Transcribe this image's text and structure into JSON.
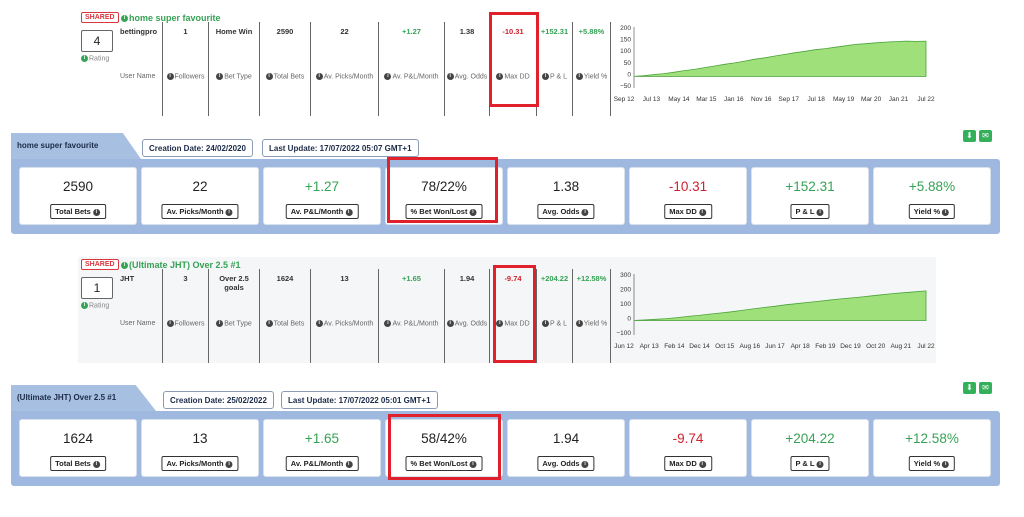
{
  "rows": [
    {
      "shared": "SHARED",
      "title": "home super favourite",
      "rank": "4",
      "rating_label": "Rating",
      "user": {
        "value": "bettingpro",
        "label": "User Name"
      },
      "followers": {
        "value": "1",
        "label": "Followers"
      },
      "bet_type": {
        "value": "Home Win",
        "label": "Bet Type"
      },
      "total_bets": {
        "value": "2590",
        "label": "Total Bets"
      },
      "picks_month": {
        "value": "22",
        "label": "Av. Picks/Month"
      },
      "pl_month": {
        "value": "+1.27",
        "label": "Av. P&L/Month"
      },
      "odds": {
        "value": "1.38",
        "label": "Avg. Odds"
      },
      "max_dd": {
        "value": "-10.31",
        "label": "Max DD"
      },
      "pl": {
        "value": "+152.31",
        "label": "P & L"
      },
      "yield": {
        "value": "+5.88%",
        "label": "Yield %"
      },
      "chart": {
        "y_ticks": [
          "200",
          "150",
          "100",
          "50",
          "0",
          "−50"
        ],
        "x_ticks": [
          "Sep 12",
          "Jul 13",
          "May 14",
          "Mar 15",
          "Jan 16",
          "Nov 16",
          "Sep 17",
          "Jul 18",
          "May 19",
          "Mar 20",
          "Jan 21",
          "Jul 22"
        ],
        "ymin": -50,
        "ymax": 200,
        "series": [
          0,
          3,
          8,
          12,
          18,
          25,
          30,
          38,
          45,
          52,
          58,
          66,
          74,
          80,
          88,
          95,
          102,
          108,
          115,
          120,
          126,
          132,
          138,
          141,
          145,
          148,
          150,
          152,
          151,
          152
        ]
      }
    },
    {
      "shared": "SHARED",
      "title": "(Ultimate JHT) Over 2.5 #1",
      "rank": "1",
      "rating_label": "Rating",
      "user": {
        "value": "JHT",
        "label": "User Name"
      },
      "followers": {
        "value": "3",
        "label": "Followers"
      },
      "bet_type": {
        "value": "Over 2.5 goals",
        "label": "Bet Type"
      },
      "total_bets": {
        "value": "1624",
        "label": "Total Bets"
      },
      "picks_month": {
        "value": "13",
        "label": "Av. Picks/Month"
      },
      "pl_month": {
        "value": "+1.65",
        "label": "Av. P&L/Month"
      },
      "odds": {
        "value": "1.94",
        "label": "Avg. Odds"
      },
      "max_dd": {
        "value": "-9.74",
        "label": "Max DD"
      },
      "pl": {
        "value": "+204.22",
        "label": "P & L"
      },
      "yield": {
        "value": "+12.58%",
        "label": "Yield %"
      },
      "chart": {
        "y_ticks": [
          "300",
          "200",
          "100",
          "0",
          "−100"
        ],
        "x_ticks": [
          "Jun 12",
          "Apr 13",
          "Feb 14",
          "Dec 14",
          "Oct 15",
          "Aug 16",
          "Jun 17",
          "Apr 18",
          "Feb 19",
          "Dec 19",
          "Oct 20",
          "Aug 21",
          "Jul 22"
        ],
        "ymin": -100,
        "ymax": 300,
        "series": [
          0,
          4,
          8,
          13,
          20,
          28,
          35,
          44,
          52,
          60,
          70,
          80,
          90,
          98,
          108,
          116,
          124,
          132,
          140,
          148,
          155,
          162,
          170,
          178,
          186,
          192,
          198,
          204
        ]
      }
    }
  ],
  "panels": [
    {
      "tab": "home super favourite",
      "creation": "Creation Date: 24/02/2020",
      "update": "Last Update: 17/07/2022 05:07 GMT+1",
      "cards": [
        {
          "value": "2590",
          "label": "Total Bets",
          "color": "normal"
        },
        {
          "value": "22",
          "label": "Av. Picks/Month",
          "color": "normal"
        },
        {
          "value": "+1.27",
          "label": "Av. P&L/Month",
          "color": "green"
        },
        {
          "value": "78/22%",
          "label": "% Bet Won/Lost",
          "color": "normal"
        },
        {
          "value": "1.38",
          "label": "Avg. Odds",
          "color": "normal"
        },
        {
          "value": "-10.31",
          "label": "Max DD",
          "color": "red"
        },
        {
          "value": "+152.31",
          "label": "P & L",
          "color": "green"
        },
        {
          "value": "+5.88%",
          "label": "Yield %",
          "color": "green"
        }
      ]
    },
    {
      "tab": "(Ultimate JHT) Over 2.5 #1",
      "creation": "Creation Date: 25/02/2022",
      "update": "Last Update: 17/07/2022 05:01 GMT+1",
      "cards": [
        {
          "value": "1624",
          "label": "Total Bets",
          "color": "normal"
        },
        {
          "value": "13",
          "label": "Av. Picks/Month",
          "color": "normal"
        },
        {
          "value": "+1.65",
          "label": "Av. P&L/Month",
          "color": "green"
        },
        {
          "value": "58/42%",
          "label": "% Bet Won/Lost",
          "color": "normal"
        },
        {
          "value": "1.94",
          "label": "Avg. Odds",
          "color": "normal"
        },
        {
          "value": "-9.74",
          "label": "Max DD",
          "color": "red"
        },
        {
          "value": "+204.22",
          "label": "P & L",
          "color": "green"
        },
        {
          "value": "+12.58%",
          "label": "Yield %",
          "color": "green"
        }
      ]
    }
  ],
  "colors": {
    "green": "#36a255",
    "red": "#d0202e",
    "panel": "#9fb8df",
    "highlight": "#e0202a"
  }
}
